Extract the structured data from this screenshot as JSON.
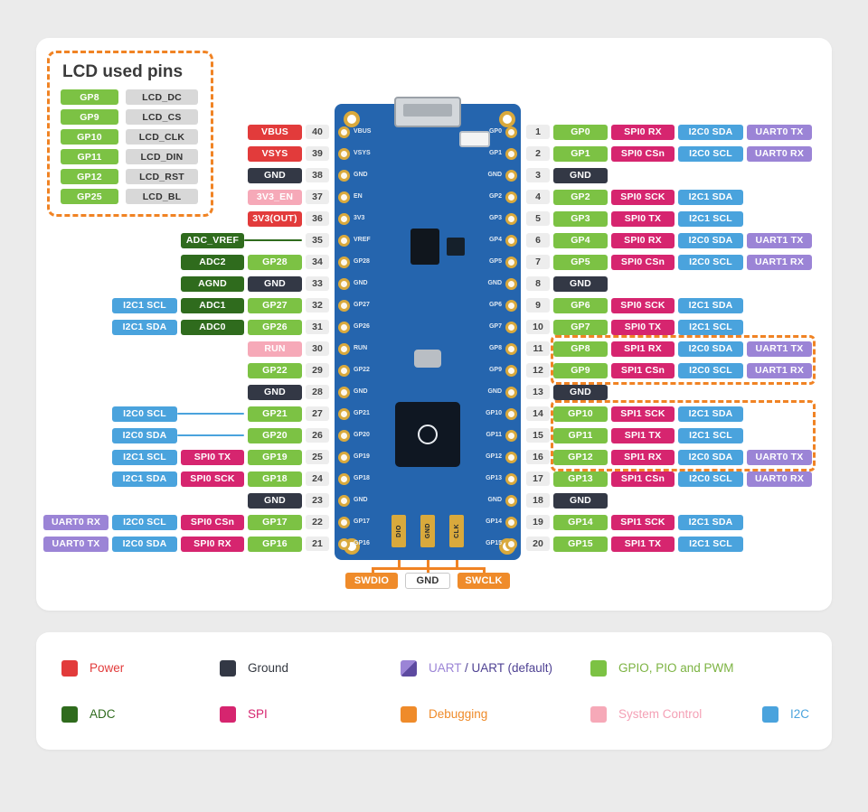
{
  "colors": {
    "accent_dashed": "#f08324",
    "board_blue": "#2565ae",
    "pad_gold": "#d9a93c",
    "card_bg": "#ffffff",
    "page_bg": "#ebebeb",
    "uart_legend_light": "#9b84d6",
    "uart_legend_dark": "#5d4aa0"
  },
  "types": {
    "power": {
      "bg": "#e23b3b",
      "fg": "#ffffff"
    },
    "ground": {
      "bg": "#333845",
      "fg": "#ffffff"
    },
    "gpio": {
      "bg": "#7cc244",
      "fg": "#ffffff"
    },
    "adc": {
      "bg": "#2f6b1d",
      "fg": "#ffffff"
    },
    "spi": {
      "bg": "#d6256f",
      "fg": "#ffffff"
    },
    "i2c": {
      "bg": "#4aa3dd",
      "fg": "#ffffff"
    },
    "uart": {
      "bg": "#9b84d6",
      "fg": "#ffffff"
    },
    "system": {
      "bg": "#f6a9b8",
      "fg": "#ffffff"
    },
    "debug": {
      "bg": "#ef8b2a",
      "fg": "#ffffff"
    },
    "gnd_light": {
      "bg": "#ffffff",
      "fg": "#333333",
      "border": "#c9c9c9"
    },
    "lcd_gray": {
      "bg": "#d8d8d8",
      "fg": "#333333"
    }
  },
  "lcd_legend": {
    "title": "LCD used pins",
    "pairs": [
      [
        "GP8",
        "LCD_DC"
      ],
      [
        "GP9",
        "LCD_CS"
      ],
      [
        "GP10",
        "LCD_CLK"
      ],
      [
        "GP11",
        "LCD_DIN"
      ],
      [
        "GP12",
        "LCD_RST"
      ],
      [
        "GP25",
        "LCD_BL"
      ]
    ]
  },
  "highlights": {
    "group_a_pins": [
      "GP8",
      "GP9"
    ],
    "group_b_pins": [
      "GP10",
      "GP11",
      "GP12"
    ]
  },
  "left_pins": [
    {
      "num": 40,
      "labels": [
        {
          "text": "VBUS",
          "type": "power",
          "col": 0
        }
      ]
    },
    {
      "num": 39,
      "labels": [
        {
          "text": "VSYS",
          "type": "power",
          "col": 0
        }
      ]
    },
    {
      "num": 38,
      "labels": [
        {
          "text": "GND",
          "type": "ground",
          "col": 0
        }
      ]
    },
    {
      "num": 37,
      "labels": [
        {
          "text": "3V3_EN",
          "type": "system",
          "col": 0
        }
      ]
    },
    {
      "num": 36,
      "labels": [
        {
          "text": "3V3(OUT)",
          "type": "power",
          "col": 0
        }
      ]
    },
    {
      "num": 35,
      "labels": [
        {
          "text": "ADC_VREF",
          "type": "adc",
          "col": 1
        }
      ],
      "lines": [
        {
          "col": 0,
          "type": "adc"
        }
      ]
    },
    {
      "num": 34,
      "labels": [
        {
          "text": "GP28",
          "type": "gpio",
          "col": 0
        },
        {
          "text": "ADC2",
          "type": "adc",
          "col": 1
        }
      ]
    },
    {
      "num": 33,
      "labels": [
        {
          "text": "GND",
          "type": "ground",
          "col": 0
        },
        {
          "text": "AGND",
          "type": "adc",
          "col": 1
        }
      ]
    },
    {
      "num": 32,
      "labels": [
        {
          "text": "GP27",
          "type": "gpio",
          "col": 0
        },
        {
          "text": "ADC1",
          "type": "adc",
          "col": 1
        },
        {
          "text": "I2C1 SCL",
          "type": "i2c",
          "col": 2
        }
      ]
    },
    {
      "num": 31,
      "labels": [
        {
          "text": "GP26",
          "type": "gpio",
          "col": 0
        },
        {
          "text": "ADC0",
          "type": "adc",
          "col": 1
        },
        {
          "text": "I2C1 SDA",
          "type": "i2c",
          "col": 2
        }
      ]
    },
    {
      "num": 30,
      "labels": [
        {
          "text": "RUN",
          "type": "system",
          "col": 0
        }
      ]
    },
    {
      "num": 29,
      "labels": [
        {
          "text": "GP22",
          "type": "gpio",
          "col": 0
        }
      ]
    },
    {
      "num": 28,
      "labels": [
        {
          "text": "GND",
          "type": "ground",
          "col": 0
        }
      ]
    },
    {
      "num": 27,
      "labels": [
        {
          "text": "GP21",
          "type": "gpio",
          "col": 0
        },
        {
          "text": "I2C0 SCL",
          "type": "i2c",
          "col": 2
        }
      ],
      "lines": [
        {
          "col": 1,
          "type": "i2c"
        }
      ]
    },
    {
      "num": 26,
      "labels": [
        {
          "text": "GP20",
          "type": "gpio",
          "col": 0
        },
        {
          "text": "I2C0 SDA",
          "type": "i2c",
          "col": 2
        }
      ],
      "lines": [
        {
          "col": 1,
          "type": "i2c"
        }
      ]
    },
    {
      "num": 25,
      "labels": [
        {
          "text": "GP19",
          "type": "gpio",
          "col": 0
        },
        {
          "text": "SPI0 TX",
          "type": "spi",
          "col": 1
        },
        {
          "text": "I2C1 SCL",
          "type": "i2c",
          "col": 2
        }
      ]
    },
    {
      "num": 24,
      "labels": [
        {
          "text": "GP18",
          "type": "gpio",
          "col": 0
        },
        {
          "text": "SPI0 SCK",
          "type": "spi",
          "col": 1
        },
        {
          "text": "I2C1 SDA",
          "type": "i2c",
          "col": 2
        }
      ]
    },
    {
      "num": 23,
      "labels": [
        {
          "text": "GND",
          "type": "ground",
          "col": 0
        }
      ]
    },
    {
      "num": 22,
      "labels": [
        {
          "text": "GP17",
          "type": "gpio",
          "col": 0
        },
        {
          "text": "SPI0 CSn",
          "type": "spi",
          "col": 1
        },
        {
          "text": "I2C0 SCL",
          "type": "i2c",
          "col": 2
        },
        {
          "text": "UART0 RX",
          "type": "uart",
          "col": 3
        }
      ]
    },
    {
      "num": 21,
      "labels": [
        {
          "text": "GP16",
          "type": "gpio",
          "col": 0
        },
        {
          "text": "SPI0 RX",
          "type": "spi",
          "col": 1
        },
        {
          "text": "I2C0 SDA",
          "type": "i2c",
          "col": 2
        },
        {
          "text": "UART0 TX",
          "type": "uart",
          "col": 3
        }
      ]
    }
  ],
  "right_pins": [
    {
      "num": 1,
      "labels": [
        {
          "text": "GP0",
          "type": "gpio"
        },
        {
          "text": "SPI0 RX",
          "type": "spi"
        },
        {
          "text": "I2C0 SDA",
          "type": "i2c"
        },
        {
          "text": "UART0 TX",
          "type": "uart"
        }
      ]
    },
    {
      "num": 2,
      "labels": [
        {
          "text": "GP1",
          "type": "gpio"
        },
        {
          "text": "SPI0 CSn",
          "type": "spi"
        },
        {
          "text": "I2C0 SCL",
          "type": "i2c"
        },
        {
          "text": "UART0 RX",
          "type": "uart"
        }
      ]
    },
    {
      "num": 3,
      "labels": [
        {
          "text": "GND",
          "type": "ground"
        }
      ]
    },
    {
      "num": 4,
      "labels": [
        {
          "text": "GP2",
          "type": "gpio"
        },
        {
          "text": "SPI0 SCK",
          "type": "spi"
        },
        {
          "text": "I2C1 SDA",
          "type": "i2c"
        }
      ]
    },
    {
      "num": 5,
      "labels": [
        {
          "text": "GP3",
          "type": "gpio"
        },
        {
          "text": "SPI0 TX",
          "type": "spi"
        },
        {
          "text": "I2C1 SCL",
          "type": "i2c"
        }
      ]
    },
    {
      "num": 6,
      "labels": [
        {
          "text": "GP4",
          "type": "gpio"
        },
        {
          "text": "SPI0 RX",
          "type": "spi"
        },
        {
          "text": "I2C0 SDA",
          "type": "i2c"
        },
        {
          "text": "UART1 TX",
          "type": "uart"
        }
      ]
    },
    {
      "num": 7,
      "labels": [
        {
          "text": "GP5",
          "type": "gpio"
        },
        {
          "text": "SPI0 CSn",
          "type": "spi"
        },
        {
          "text": "I2C0 SCL",
          "type": "i2c"
        },
        {
          "text": "UART1 RX",
          "type": "uart"
        }
      ]
    },
    {
      "num": 8,
      "labels": [
        {
          "text": "GND",
          "type": "ground"
        }
      ]
    },
    {
      "num": 9,
      "labels": [
        {
          "text": "GP6",
          "type": "gpio"
        },
        {
          "text": "SPI0 SCK",
          "type": "spi"
        },
        {
          "text": "I2C1 SDA",
          "type": "i2c"
        }
      ]
    },
    {
      "num": 10,
      "labels": [
        {
          "text": "GP7",
          "type": "gpio"
        },
        {
          "text": "SPI0 TX",
          "type": "spi"
        },
        {
          "text": "I2C1 SCL",
          "type": "i2c"
        }
      ]
    },
    {
      "num": 11,
      "labels": [
        {
          "text": "GP8",
          "type": "gpio"
        },
        {
          "text": "SPI1 RX",
          "type": "spi"
        },
        {
          "text": "I2C0 SDA",
          "type": "i2c"
        },
        {
          "text": "UART1 TX",
          "type": "uart"
        }
      ]
    },
    {
      "num": 12,
      "labels": [
        {
          "text": "GP9",
          "type": "gpio"
        },
        {
          "text": "SPI1 CSn",
          "type": "spi"
        },
        {
          "text": "I2C0 SCL",
          "type": "i2c"
        },
        {
          "text": "UART1 RX",
          "type": "uart"
        }
      ]
    },
    {
      "num": 13,
      "labels": [
        {
          "text": "GND",
          "type": "ground"
        }
      ]
    },
    {
      "num": 14,
      "labels": [
        {
          "text": "GP10",
          "type": "gpio"
        },
        {
          "text": "SPI1 SCK",
          "type": "spi"
        },
        {
          "text": "I2C1 SDA",
          "type": "i2c"
        }
      ]
    },
    {
      "num": 15,
      "labels": [
        {
          "text": "GP11",
          "type": "gpio"
        },
        {
          "text": "SPI1 TX",
          "type": "spi"
        },
        {
          "text": "I2C1 SCL",
          "type": "i2c"
        }
      ]
    },
    {
      "num": 16,
      "labels": [
        {
          "text": "GP12",
          "type": "gpio"
        },
        {
          "text": "SPI1 RX",
          "type": "spi"
        },
        {
          "text": "I2C0 SDA",
          "type": "i2c"
        },
        {
          "text": "UART0 TX",
          "type": "uart"
        }
      ]
    },
    {
      "num": 17,
      "labels": [
        {
          "text": "GP13",
          "type": "gpio"
        },
        {
          "text": "SPI1 CSn",
          "type": "spi"
        },
        {
          "text": "I2C0 SCL",
          "type": "i2c"
        },
        {
          "text": "UART0 RX",
          "type": "uart"
        }
      ]
    },
    {
      "num": 18,
      "labels": [
        {
          "text": "GND",
          "type": "ground"
        }
      ]
    },
    {
      "num": 19,
      "labels": [
        {
          "text": "GP14",
          "type": "gpio"
        },
        {
          "text": "SPI1 SCK",
          "type": "spi"
        },
        {
          "text": "I2C1 SDA",
          "type": "i2c"
        }
      ]
    },
    {
      "num": 20,
      "labels": [
        {
          "text": "GP15",
          "type": "gpio"
        },
        {
          "text": "SPI1 TX",
          "type": "spi"
        },
        {
          "text": "I2C1 SCL",
          "type": "i2c"
        }
      ]
    }
  ],
  "board": {
    "left_labels": [
      "VBUS",
      "VSYS",
      "GND",
      "EN",
      "3V3",
      "VREF",
      "GP28",
      "GND",
      "GP27",
      "GP26",
      "RUN",
      "GP22",
      "GND",
      "GP21",
      "GP20",
      "GP19",
      "GP18",
      "GND",
      "GP17",
      "GP16"
    ],
    "right_labels": [
      "GP0",
      "GP1",
      "GND",
      "GP2",
      "GP3",
      "GP4",
      "GP5",
      "GND",
      "GP6",
      "GP7",
      "GP8",
      "GP9",
      "GND",
      "GP10",
      "GP11",
      "GP12",
      "GP13",
      "GND",
      "GP14",
      "GP15"
    ],
    "bottom_labels": [
      "DIO",
      "GND",
      "CLK"
    ]
  },
  "debug": {
    "labels": [
      {
        "text": "SWDIO",
        "type": "debug"
      },
      {
        "text": "GND",
        "type": "gnd_light"
      },
      {
        "text": "SWCLK",
        "type": "debug"
      }
    ]
  },
  "legend": {
    "row1": [
      {
        "label": "Power",
        "type": "power",
        "text_color": "#e23b3b"
      },
      {
        "label": "Ground",
        "type": "ground",
        "text_color": "#333840"
      },
      {
        "label": "UART / UART (default)",
        "type": "uart_split",
        "parts": [
          {
            "text": "UART ",
            "color": "#9b84d6"
          },
          {
            "text": "/ UART (default)",
            "color": "#4f4293"
          }
        ]
      },
      {
        "label": "GPIO, PIO  and PWM",
        "type": "gpio",
        "text_color": "#7cb342"
      }
    ],
    "row2": [
      {
        "label": "ADC",
        "type": "adc",
        "text_color": "#2f6b1d"
      },
      {
        "label": "SPI",
        "type": "spi",
        "text_color": "#d6256f"
      },
      {
        "label": "Debugging",
        "type": "debug",
        "text_color": "#ef8b2a"
      },
      {
        "label": "System Control",
        "type": "system",
        "text_color": "#f4a0b5"
      },
      {
        "label": "I2C",
        "type": "i2c",
        "text_color": "#4aa3dd"
      }
    ]
  }
}
